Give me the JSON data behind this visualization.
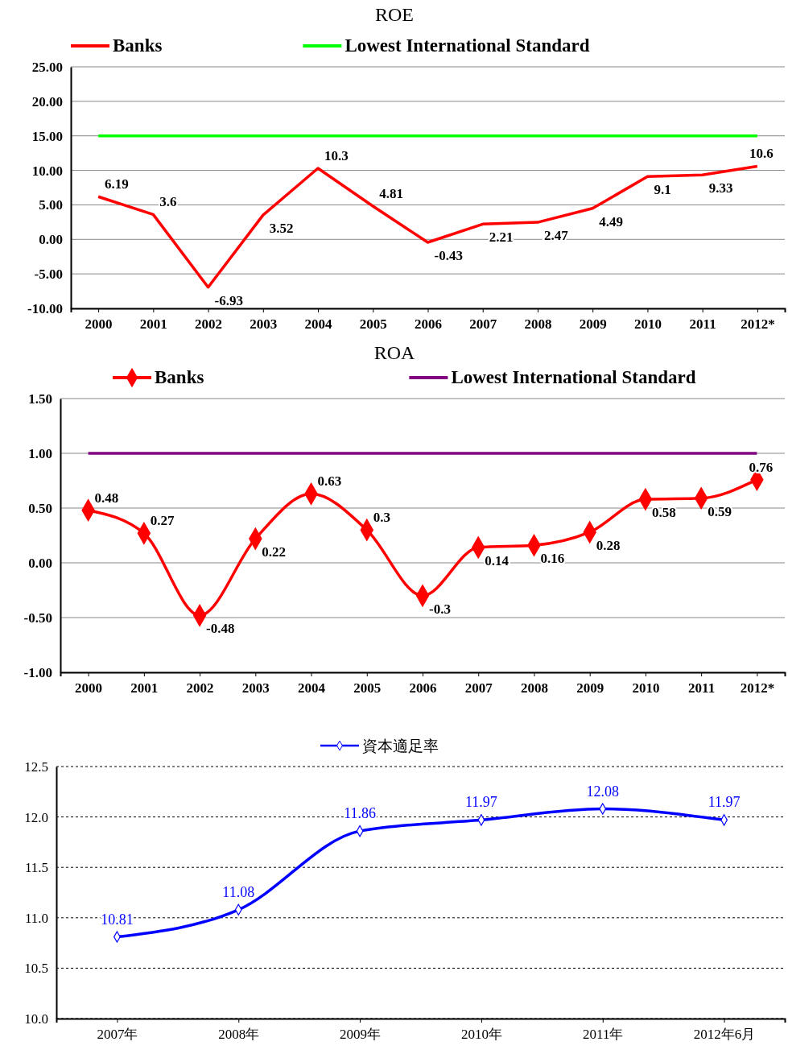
{
  "chart_data": [
    {
      "type": "line",
      "title": "ROE",
      "categories": [
        "2000",
        "2001",
        "2002",
        "2003",
        "2004",
        "2005",
        "2006",
        "2007",
        "2008",
        "2009",
        "2010",
        "2011",
        "2012*"
      ],
      "series": [
        {
          "name": "Banks",
          "color": "#ff0000",
          "values": [
            6.19,
            3.6,
            -6.93,
            3.52,
            10.3,
            4.81,
            -0.43,
            2.21,
            2.47,
            4.49,
            9.1,
            9.33,
            10.6
          ],
          "value_labels": [
            "6.19",
            "3.6",
            "-6.93",
            "3.52",
            "10.3",
            "4.81",
            "-0.43",
            "2.21",
            "2.47",
            "4.49",
            "9.1",
            "9.33",
            "10.6"
          ]
        },
        {
          "name": "Lowest International Standard",
          "color": "#00ff00",
          "values": [
            15,
            15,
            15,
            15,
            15,
            15,
            15,
            15,
            15,
            15,
            15,
            15,
            15
          ]
        }
      ],
      "ylim": [
        -10,
        25
      ],
      "yticks": [
        {
          "value": -10,
          "label": "-10.00"
        },
        {
          "value": -5,
          "label": "-5.00"
        },
        {
          "value": 0,
          "label": "0.00"
        },
        {
          "value": 5,
          "label": "5.00"
        },
        {
          "value": 10,
          "label": "10.00"
        },
        {
          "value": 15,
          "label": "15.00"
        },
        {
          "value": 20,
          "label": "20.00"
        },
        {
          "value": 25,
          "label": "25.00"
        }
      ],
      "grid": "y",
      "legend": "top",
      "marker": "none"
    },
    {
      "type": "line",
      "title": "ROA",
      "categories": [
        "2000",
        "2001",
        "2002",
        "2003",
        "2004",
        "2005",
        "2006",
        "2007",
        "2008",
        "2009",
        "2010",
        "2011",
        "2012*"
      ],
      "series": [
        {
          "name": "Banks",
          "color": "#ff0000",
          "marker": "diamond",
          "values": [
            0.48,
            0.27,
            -0.48,
            0.22,
            0.63,
            0.3,
            -0.3,
            0.14,
            0.16,
            0.28,
            0.58,
            0.59,
            0.76
          ],
          "value_labels": [
            "0.48",
            "0.27",
            "-0.48",
            "0.22",
            "0.63",
            "0.3",
            "-0.3",
            "0.14",
            "0.16",
            "0.28",
            "0.58",
            "0.59",
            "0.76"
          ]
        },
        {
          "name": "Lowest International Standard",
          "color": "#800080",
          "values": [
            1,
            1,
            1,
            1,
            1,
            1,
            1,
            1,
            1,
            1,
            1,
            1,
            1
          ]
        }
      ],
      "ylim": [
        -1,
        1.5
      ],
      "yticks": [
        {
          "value": -1,
          "label": "-1.00"
        },
        {
          "value": -0.5,
          "label": "-0.50"
        },
        {
          "value": 0,
          "label": "0.00"
        },
        {
          "value": 0.5,
          "label": "0.50"
        },
        {
          "value": 1,
          "label": "1.00"
        },
        {
          "value": 1.5,
          "label": "1.50"
        }
      ],
      "grid": "y",
      "legend": "top",
      "marker": "none"
    },
    {
      "type": "line",
      "categories": [
        "2007年",
        "2008年",
        "2009年",
        "2010年",
        "2011年",
        "2012年6月"
      ],
      "series": [
        {
          "name": "資本適足率",
          "color": "#0000ff",
          "values": [
            10.81,
            11.08,
            11.86,
            11.97,
            12.08,
            11.97
          ]
        }
      ],
      "ylim": [
        10,
        12.5
      ],
      "yticks": [
        {
          "value": 10,
          "label": "10.0"
        },
        {
          "value": 10.5,
          "label": "10.5"
        },
        {
          "value": 11,
          "label": "11.0"
        },
        {
          "value": 11.5,
          "label": "11.5"
        },
        {
          "value": 12,
          "label": "12.0"
        },
        {
          "value": 12.5,
          "label": "12.5"
        }
      ],
      "grid": "y",
      "legend": "top",
      "marker": "diamond",
      "data_labels": true
    }
  ]
}
